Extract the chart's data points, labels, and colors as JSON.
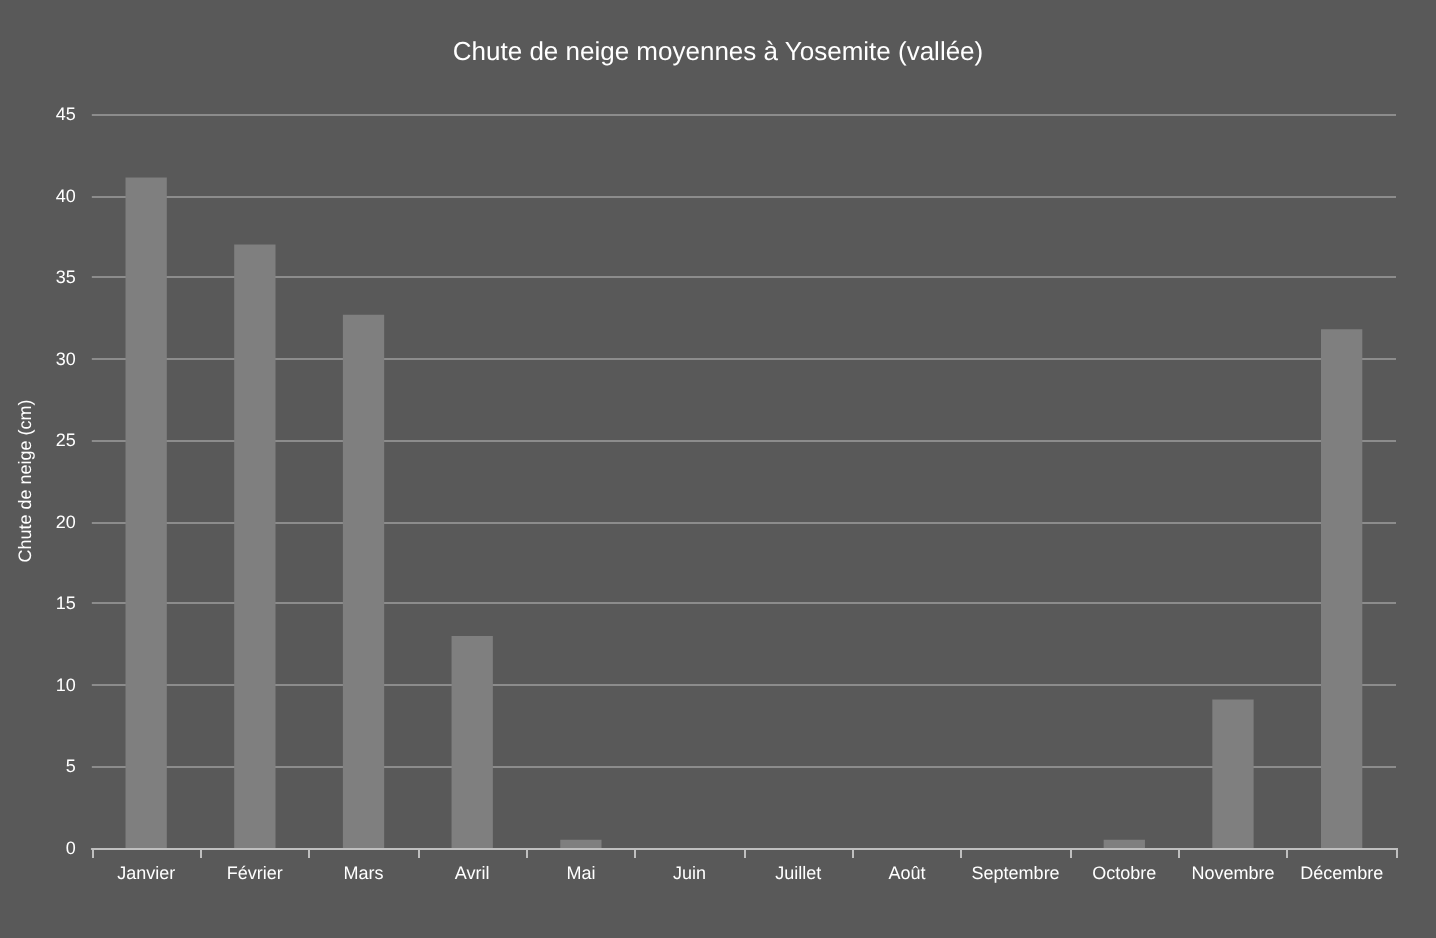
{
  "chart_data": {
    "type": "bar",
    "title": "Chute de neige moyennes à Yosemite (vallée)",
    "ylabel": "Chute de neige (cm)",
    "categories": [
      "Janvier",
      "Février",
      "Mars",
      "Avril",
      "Mai",
      "Juin",
      "Juillet",
      "Août",
      "Septembre",
      "Octobre",
      "Novembre",
      "Décembre"
    ],
    "values": [
      41.1,
      37.0,
      32.7,
      13.0,
      0.5,
      0,
      0,
      0,
      0,
      0.5,
      9.1,
      31.8
    ],
    "color": "#7f7f7f",
    "ylim": [
      0,
      45
    ],
    "yticks": [
      0,
      5,
      10,
      15,
      20,
      25,
      30,
      35,
      40,
      45
    ],
    "grid": "y"
  }
}
